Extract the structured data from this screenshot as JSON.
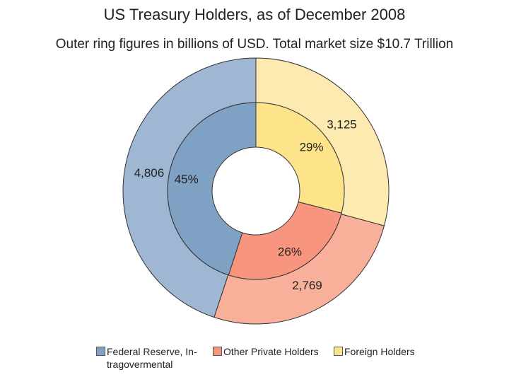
{
  "chart_data": {
    "type": "pie",
    "variant": "donut-two-ring",
    "title": "US Treasury Holders, as of December 2008",
    "subtitle": "Outer ring figures in billions of USD. Total market size $10.7 Trillion",
    "categories": [
      "Federal Reserve, Intragovermental",
      "Other Private Holders",
      "Foreign Holders"
    ],
    "series": [
      {
        "ring": "outer",
        "values": [
          4806,
          2769,
          3125
        ],
        "labels": [
          "4,806",
          "2,769",
          "3,125"
        ],
        "colors": [
          "#9fb7d2",
          "#f9b09b",
          "#fdeab0"
        ]
      },
      {
        "ring": "inner",
        "values": [
          45,
          26,
          29
        ],
        "labels": [
          "45%",
          "26%",
          "29%"
        ],
        "colors": [
          "#7fa1c3",
          "#f8957f",
          "#fde48b"
        ]
      }
    ],
    "legend": {
      "position": "bottom",
      "items": [
        {
          "label": "Federal Reserve, In-tragovermental",
          "color": "#7fa1c3"
        },
        {
          "label": "Other Private Holders",
          "color": "#f8957f"
        },
        {
          "label": "Foreign Holders",
          "color": "#fde48b"
        }
      ]
    }
  }
}
